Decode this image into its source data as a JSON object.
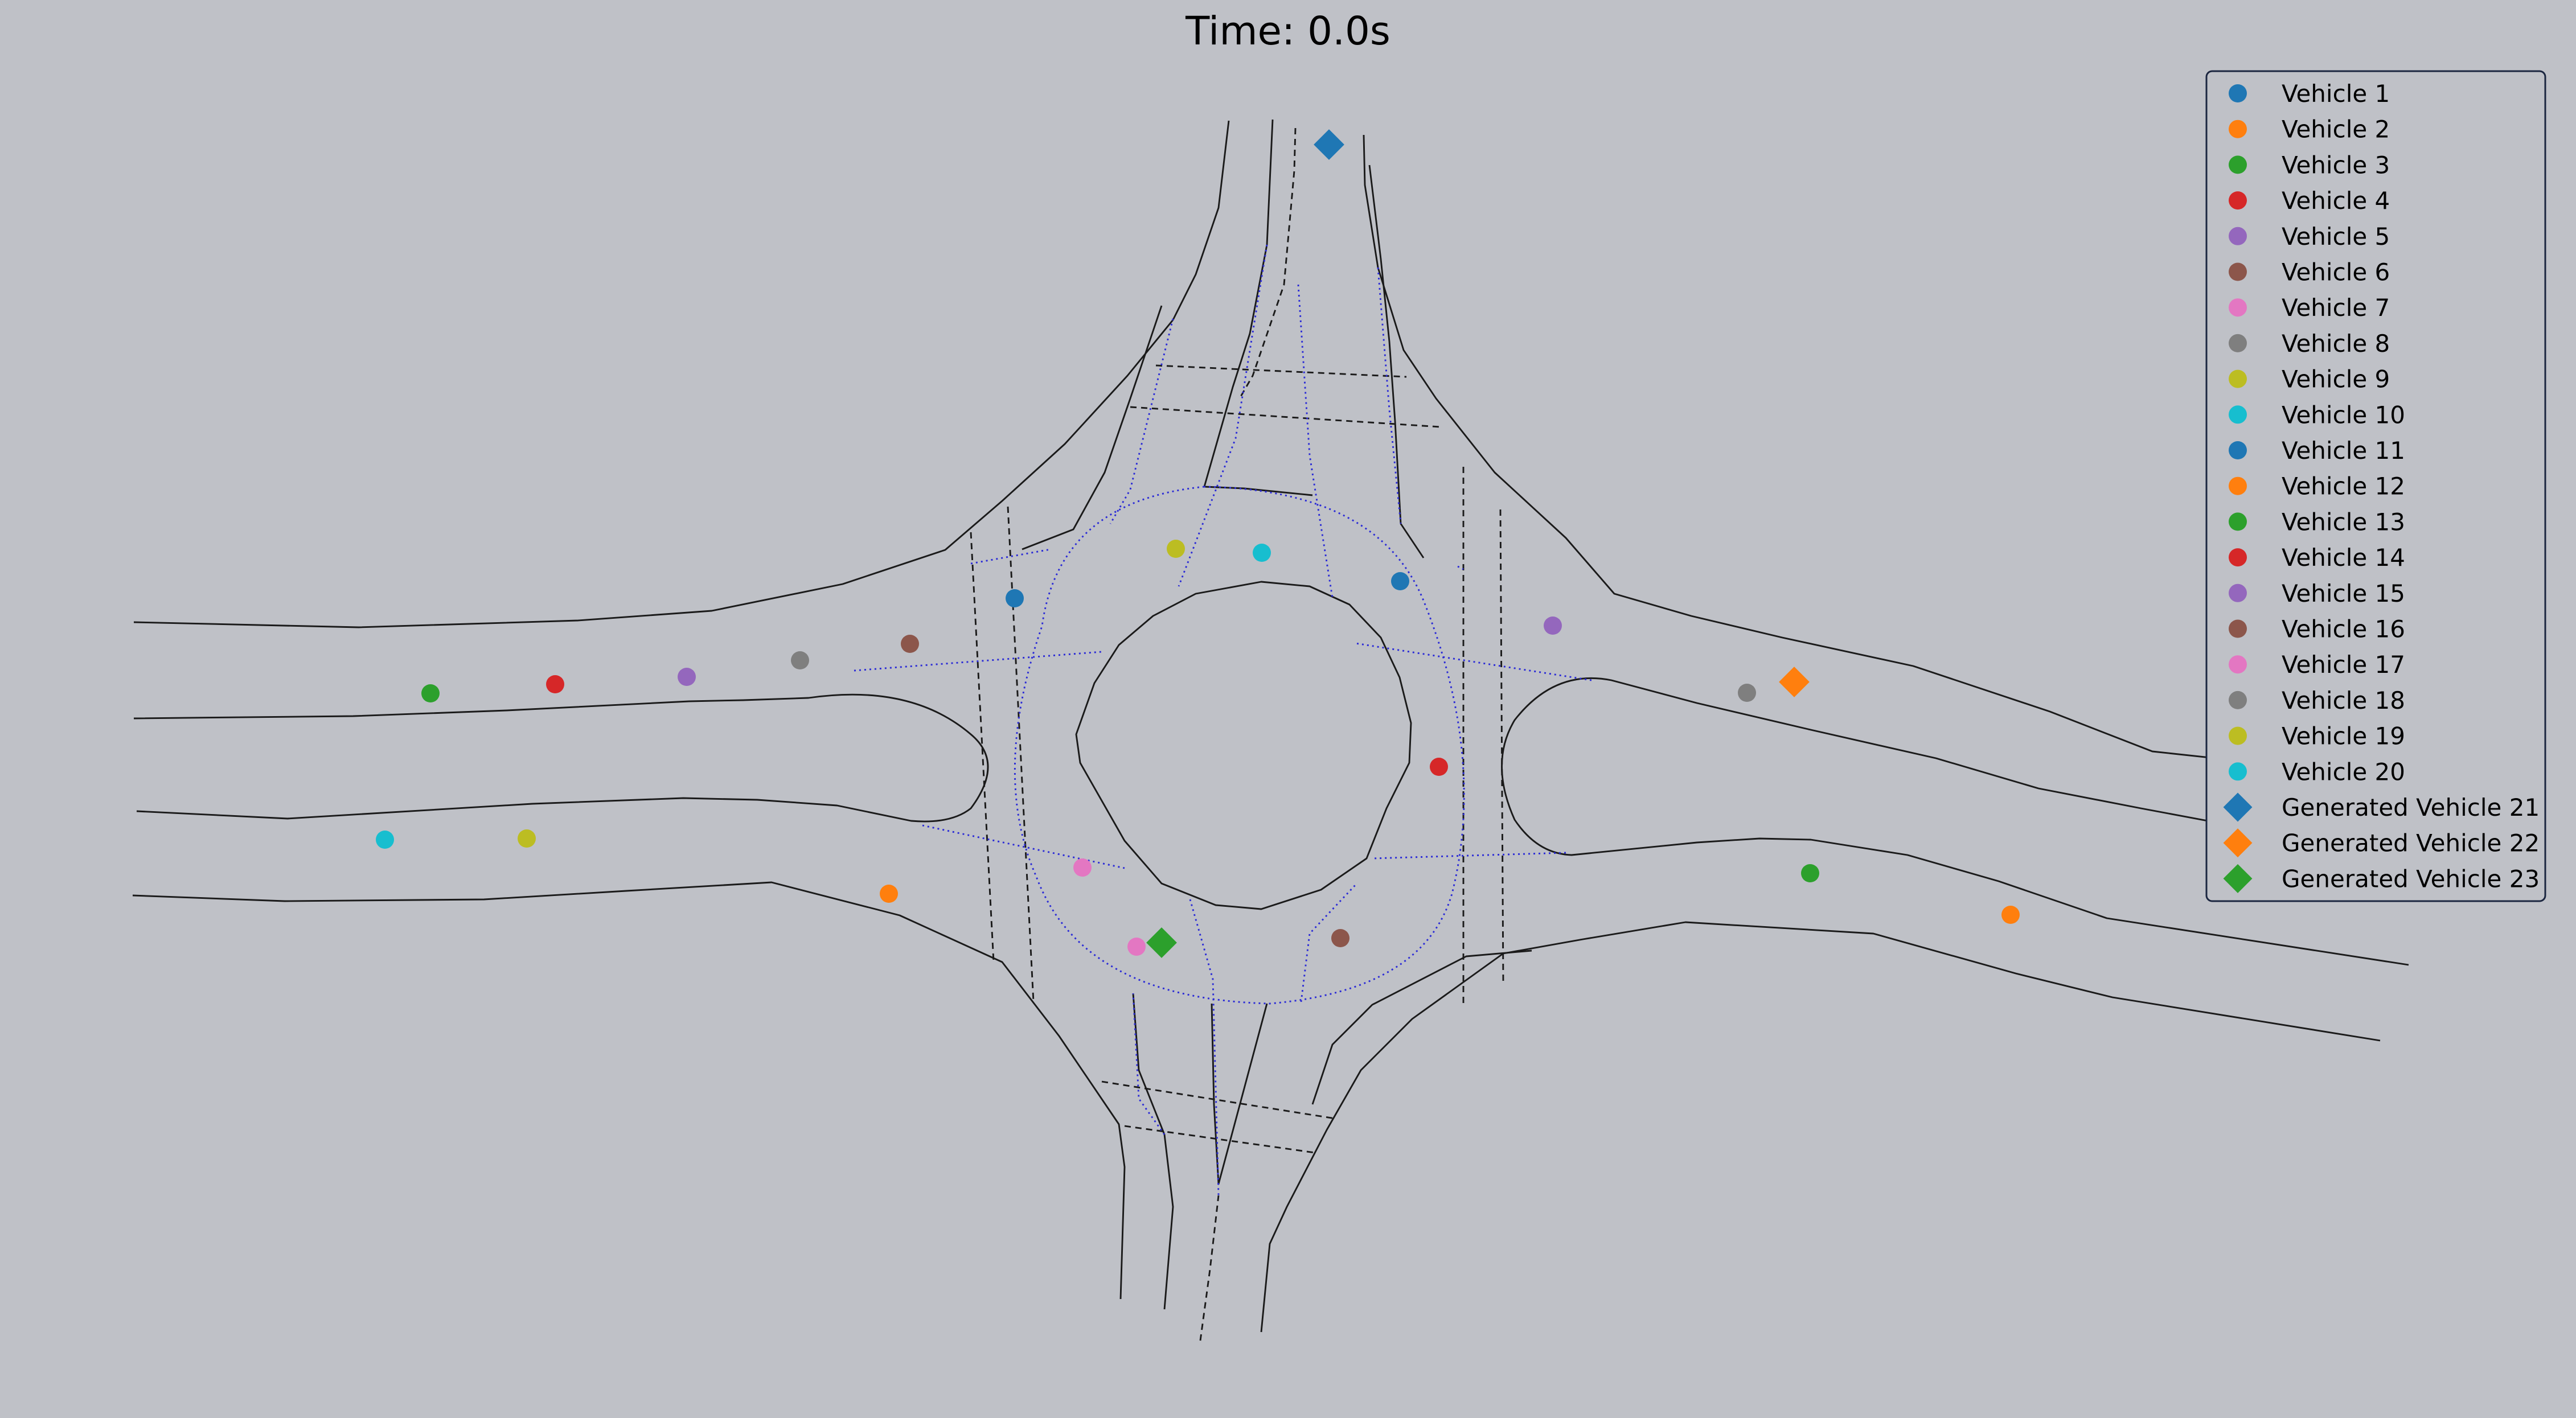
{
  "title": "Time: 0.0s",
  "colors": {
    "background": "#bfc1c7",
    "road": "#1a1a1a",
    "planned_path": "#2b2bd6"
  },
  "vehicles": [
    {
      "label": "Vehicle 1",
      "color": "#1f77b4",
      "marker": "circle"
    },
    {
      "label": "Vehicle 2",
      "color": "#ff7f0e",
      "marker": "circle"
    },
    {
      "label": "Vehicle 3",
      "color": "#2ca02c",
      "marker": "circle"
    },
    {
      "label": "Vehicle 4",
      "color": "#d62728",
      "marker": "circle"
    },
    {
      "label": "Vehicle 5",
      "color": "#9467bd",
      "marker": "circle"
    },
    {
      "label": "Vehicle 6",
      "color": "#8c564b",
      "marker": "circle"
    },
    {
      "label": "Vehicle 7",
      "color": "#e377c2",
      "marker": "circle"
    },
    {
      "label": "Vehicle 8",
      "color": "#7f7f7f",
      "marker": "circle"
    },
    {
      "label": "Vehicle 9",
      "color": "#bcbd22",
      "marker": "circle"
    },
    {
      "label": "Vehicle 10",
      "color": "#17becf",
      "marker": "circle"
    },
    {
      "label": "Vehicle 11",
      "color": "#1f77b4",
      "marker": "circle"
    },
    {
      "label": "Vehicle 12",
      "color": "#ff7f0e",
      "marker": "circle"
    },
    {
      "label": "Vehicle 13",
      "color": "#2ca02c",
      "marker": "circle"
    },
    {
      "label": "Vehicle 14",
      "color": "#d62728",
      "marker": "circle"
    },
    {
      "label": "Vehicle 15",
      "color": "#9467bd",
      "marker": "circle"
    },
    {
      "label": "Vehicle 16",
      "color": "#8c564b",
      "marker": "circle"
    },
    {
      "label": "Vehicle 17",
      "color": "#e377c2",
      "marker": "circle"
    },
    {
      "label": "Vehicle 18",
      "color": "#7f7f7f",
      "marker": "circle"
    },
    {
      "label": "Vehicle 19",
      "color": "#bcbd22",
      "marker": "circle"
    },
    {
      "label": "Vehicle 20",
      "color": "#17becf",
      "marker": "circle"
    },
    {
      "label": "Generated Vehicle 21",
      "color": "#1f77b4",
      "marker": "diamond"
    },
    {
      "label": "Generated Vehicle 22",
      "color": "#ff7f0e",
      "marker": "diamond"
    },
    {
      "label": "Generated Vehicle 23",
      "color": "#2ca02c",
      "marker": "diamond"
    }
  ]
}
